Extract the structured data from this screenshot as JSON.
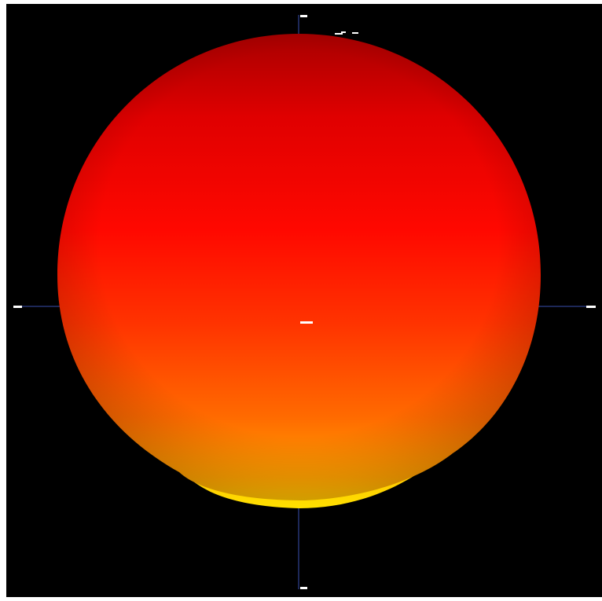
{
  "viewport": {
    "background_color": "#000000",
    "frame_color": "#ffffff"
  },
  "surface": {
    "shape": "sphere",
    "colormap": [
      "#b00000",
      "#ff0a00",
      "#ff3a00",
      "#ff7a00",
      "#ffc800",
      "#ffe000"
    ],
    "top_color": "#b00000",
    "mid_color": "#ff0a00",
    "bottom_color": "#ffc800",
    "rim_color": "#ffe000"
  },
  "axes": {
    "color": "#3a4fb0",
    "labels": [
      "+y",
      "-y",
      "+x",
      "-x",
      "origin"
    ],
    "tick_labels": []
  },
  "icons": {
    "origin_marker": "origin-marker-icon",
    "axis_tag": "axis-tag-icon"
  }
}
